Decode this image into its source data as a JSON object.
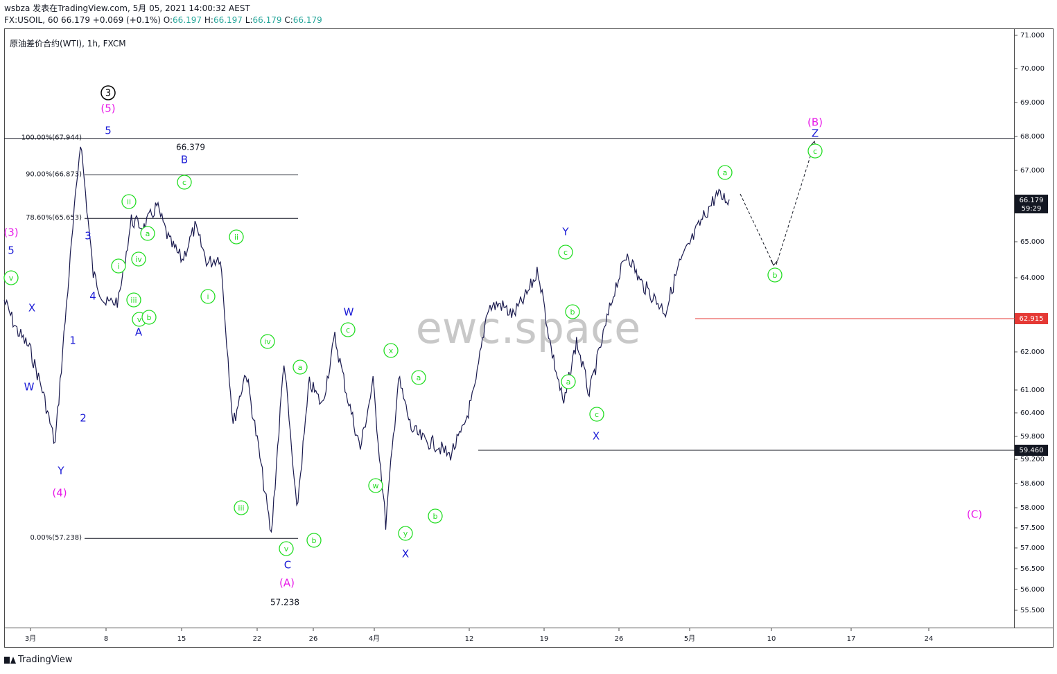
{
  "header": {
    "line1": "wsbza 发表在TradingView.com, 5月 05, 2021 14:00:32 AEST",
    "symbol": "FX:USOIL, 60",
    "last": "66.179",
    "change": "+0.069 (+0.1%)",
    "o_label": "O:",
    "o": "66.197",
    "h_label": "H:",
    "h": "66.197",
    "l_label": "L:",
    "l": "66.179",
    "c_label": "C:",
    "c": "66.179"
  },
  "legend": "原油差价合约(WTI), 1h, FXCM",
  "watermark": "ewc.space",
  "footer": {
    "brand": "TradingView"
  },
  "colors": {
    "price": "#1a1a4e",
    "green": "#22dd22",
    "blue": "#1a1ad6",
    "magenta": "#e81ae8",
    "red": "#e53935",
    "dark": "#131722"
  },
  "chart_data": {
    "type": "line",
    "symbol": "USOIL",
    "timeframe": "1h",
    "x_ticks": [
      "3月",
      "8",
      "15",
      "22",
      "26",
      "4月",
      "12",
      "19",
      "26",
      "5月",
      "10",
      "17",
      "24"
    ],
    "y_ticks": [
      "71.000",
      "70.000",
      "69.000",
      "68.000",
      "67.000",
      "65.000",
      "64.000",
      "62.000",
      "61.000",
      "60.400",
      "59.800",
      "59.200",
      "58.600",
      "58.000",
      "57.500",
      "57.000",
      "56.500",
      "56.000",
      "55.500"
    ],
    "ylim": [
      55.1,
      71.2
    ],
    "series": [
      {
        "x": [
          "3月",
          "",
          "",
          "",
          "",
          "8",
          "",
          "",
          "",
          "",
          "",
          "",
          "15",
          "",
          "",
          "",
          "",
          "",
          "",
          "22",
          "",
          "",
          "",
          "26",
          "",
          "",
          "",
          "4月",
          "",
          "",
          "",
          "",
          "",
          "",
          "",
          "12",
          "",
          "",
          "",
          "",
          "",
          "",
          "19",
          "",
          "",
          "",
          "",
          "",
          "",
          "26",
          "",
          "",
          "",
          "",
          "",
          "5月",
          "",
          ""
        ],
        "values": [
          63.4,
          62.6,
          62.1,
          61.0,
          59.6,
          63.7,
          67.9,
          64.1,
          63.3,
          63.4,
          65.6,
          65.4,
          66.0,
          65.0,
          64.5,
          65.4,
          64.4,
          64.6,
          60.1,
          61.5,
          59.5,
          57.3,
          61.8,
          57.9,
          61.2,
          60.6,
          62.4,
          60.8,
          59.5,
          61.2,
          57.6,
          61.3,
          60.0,
          59.7,
          59.6,
          59.3,
          59.9,
          61.0,
          63.2,
          63.3,
          63.0,
          63.5,
          64.2,
          62.1,
          60.6,
          62.3,
          60.9,
          62.3,
          63.7,
          64.7,
          63.9,
          63.5,
          63.1,
          64.3,
          65.0,
          65.7,
          66.3,
          66.179
        ]
      }
    ],
    "annotations": {
      "fib_levels": [
        {
          "label": "100.00%(67.944)",
          "value": 67.944
        },
        {
          "label": "90.00%(66.873)",
          "value": 66.873
        },
        {
          "label": "78.60%(65.653)",
          "value": 65.653
        },
        {
          "label": "0.00%(57.238)",
          "value": 57.238
        }
      ],
      "price_labels": [
        "66.379",
        "57.238"
      ],
      "horizontal_lines": [
        {
          "value": 62.915,
          "badge": "62.915",
          "color": "#e53935"
        },
        {
          "value": 59.46,
          "badge": "59.460",
          "color": "#131722"
        },
        {
          "value": 67.944,
          "badge": "",
          "color": "#131722"
        }
      ],
      "last_price_badge": {
        "value": "66.179",
        "countdown": "59:29"
      },
      "wave_labels": {
        "blue": [
          "5",
          "3",
          "4",
          "1",
          "2",
          "W",
          "X",
          "Y",
          "A",
          "B",
          "C",
          "W",
          "X",
          "Y",
          "X",
          "Z"
        ],
        "magenta": [
          "(5)",
          "(3)",
          "(4)",
          "(A)",
          "(B)",
          "(C)"
        ],
        "black_circled": [
          "3"
        ],
        "green_circled": [
          "v",
          "ii",
          "i",
          "iv",
          "iii",
          "v",
          "b",
          "a",
          "c",
          "ii",
          "i",
          "iv",
          "iii",
          "a",
          "v",
          "b",
          "c",
          "x",
          "w",
          "a",
          "y",
          "b",
          "c",
          "b",
          "a",
          "c",
          "a",
          "b",
          "c"
        ]
      }
    }
  }
}
